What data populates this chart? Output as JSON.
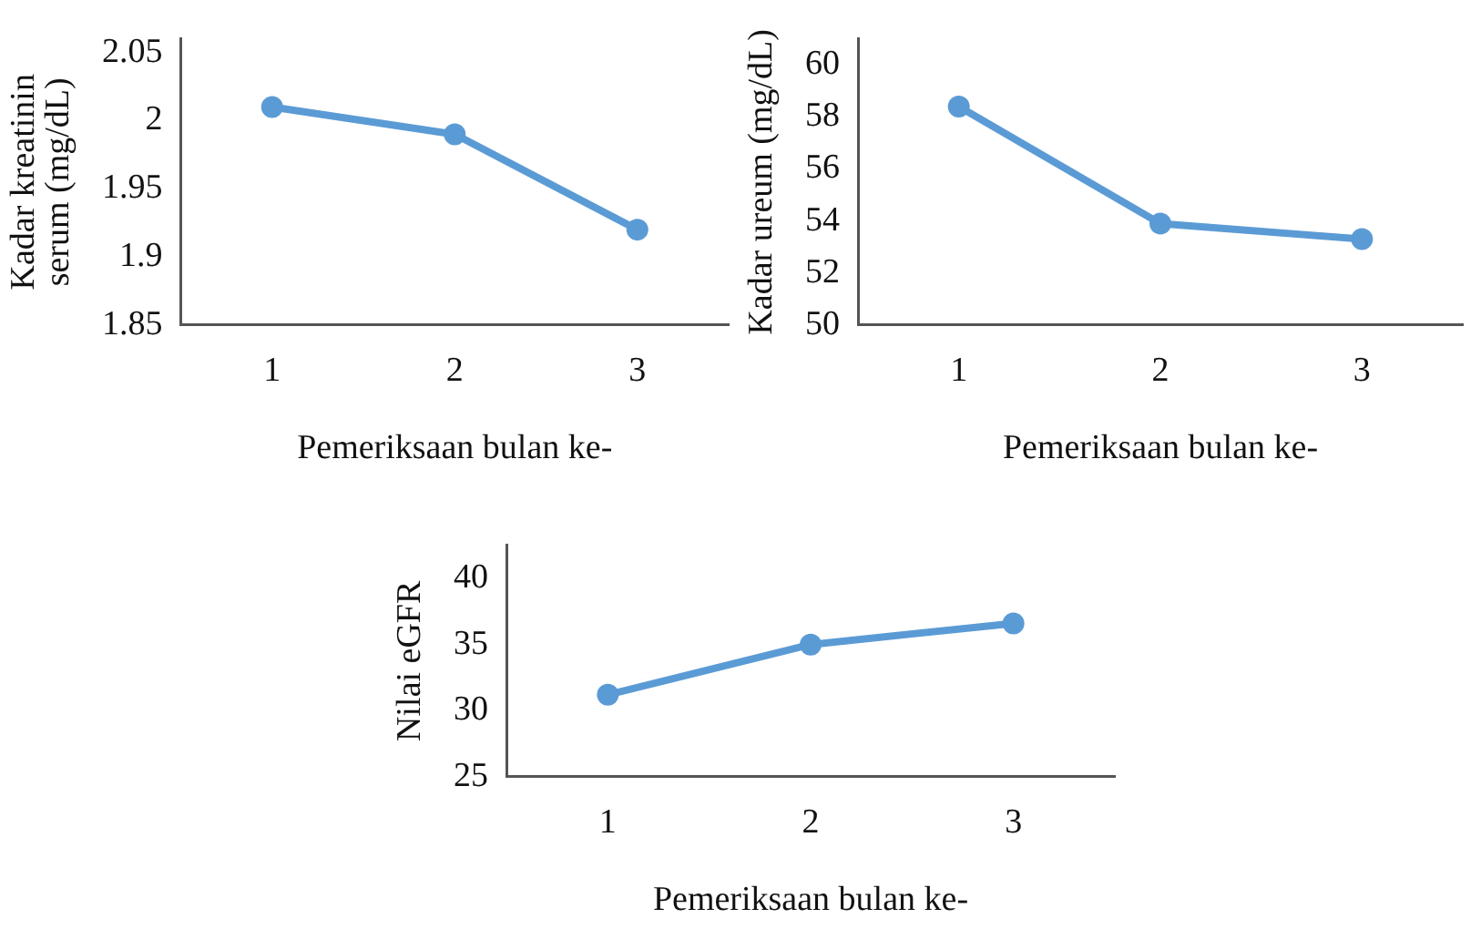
{
  "chart_data": [
    {
      "type": "line",
      "xlabel": "Pemeriksaan bulan ke-",
      "ylabel": "Kadar kreatinin serum (mg/dL)",
      "categories": [
        "1",
        "2",
        "3"
      ],
      "series": [
        {
          "color": "#5b9bd5",
          "values": [
            2.01,
            1.99,
            1.92
          ]
        }
      ],
      "ylim": [
        1.85,
        2.06
      ],
      "yticks": [
        1.85,
        1.9,
        1.95,
        2,
        2.05
      ],
      "grid": false,
      "legend": false,
      "marker": "circle",
      "line_style": "solid"
    },
    {
      "type": "line",
      "xlabel": "Pemeriksaan bulan ke-",
      "ylabel": "Kadar ureum (mg/dL)",
      "categories": [
        "1",
        "2",
        "3"
      ],
      "series": [
        {
          "color": "#5b9bd5",
          "values": [
            58.4,
            53.9,
            53.3
          ]
        }
      ],
      "ylim": [
        50,
        61
      ],
      "yticks": [
        50,
        52,
        54,
        56,
        58,
        60
      ],
      "grid": false,
      "legend": false,
      "marker": "circle",
      "line_style": "solid"
    },
    {
      "type": "line",
      "xlabel": "Pemeriksaan bulan ke-",
      "ylabel": "Nilai eGFR",
      "categories": [
        "1",
        "2",
        "3"
      ],
      "series": [
        {
          "color": "#5b9bd5",
          "values": [
            31.2,
            35,
            36.6
          ]
        }
      ],
      "ylim": [
        25,
        42.5
      ],
      "yticks": [
        25,
        30,
        35,
        40
      ],
      "grid": false,
      "legend": false,
      "marker": "circle",
      "line_style": "solid"
    }
  ]
}
